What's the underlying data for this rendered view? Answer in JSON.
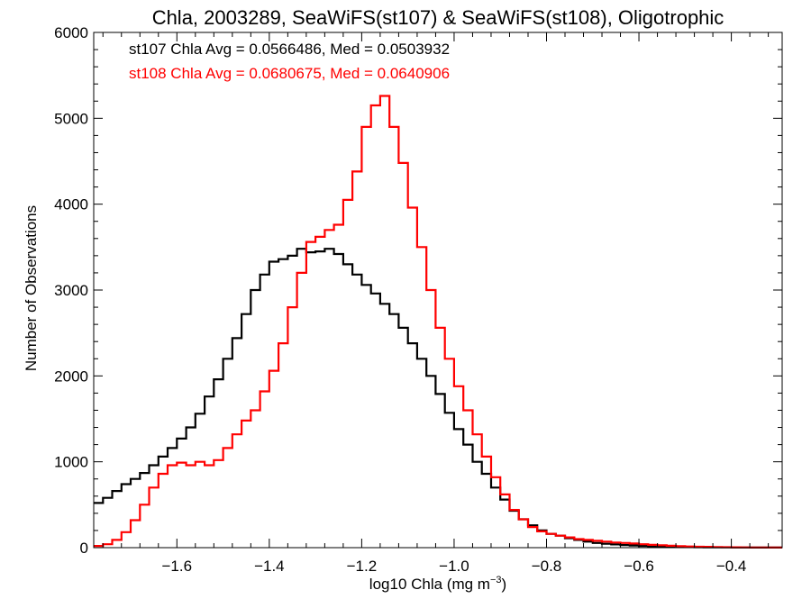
{
  "chart_data": {
    "type": "line",
    "step": true,
    "title": "Chla, 2003289, SeaWiFS(st107) & SeaWiFS(st108), Oligotrophic",
    "xlabel_prefix": "log10 Chla (mg m",
    "xlabel_exponent": "−3",
    "xlabel_suffix": ")",
    "ylabel": "Number of Observations",
    "xlim": [
      -1.78,
      -0.29
    ],
    "ylim": [
      0,
      6000
    ],
    "x_ticks": [
      -1.6,
      -1.4,
      -1.2,
      -1.0,
      -0.8,
      -0.6,
      -0.4
    ],
    "x_tick_labels": [
      "−1.6",
      "−1.4",
      "−1.2",
      "−1.0",
      "−0.8",
      "−0.6",
      "−0.4"
    ],
    "y_ticks": [
      0,
      1000,
      2000,
      3000,
      4000,
      5000,
      6000
    ],
    "y_tick_labels": [
      "0",
      "1000",
      "2000",
      "3000",
      "4000",
      "5000",
      "6000"
    ],
    "annotations": [
      {
        "text": "st107 Chla Avg = 0.0566486, Med = 0.0503932",
        "color": "#000000"
      },
      {
        "text": "st108 Chla Avg = 0.0680675, Med = 0.0640906",
        "color": "#ff0000"
      }
    ],
    "series": [
      {
        "color": "#000000",
        "x": [
          -1.78,
          -1.76,
          -1.74,
          -1.72,
          -1.7,
          -1.68,
          -1.66,
          -1.64,
          -1.62,
          -1.6,
          -1.58,
          -1.56,
          -1.54,
          -1.52,
          -1.5,
          -1.48,
          -1.46,
          -1.44,
          -1.42,
          -1.4,
          -1.38,
          -1.36,
          -1.34,
          -1.32,
          -1.3,
          -1.28,
          -1.26,
          -1.24,
          -1.22,
          -1.2,
          -1.18,
          -1.16,
          -1.14,
          -1.12,
          -1.1,
          -1.08,
          -1.06,
          -1.04,
          -1.02,
          -1.0,
          -0.98,
          -0.96,
          -0.94,
          -0.92,
          -0.9,
          -0.88,
          -0.86,
          -0.84,
          -0.82,
          -0.8,
          -0.78,
          -0.76,
          -0.74,
          -0.72,
          -0.7,
          -0.68,
          -0.66,
          -0.64,
          -0.62,
          -0.6,
          -0.58,
          -0.56,
          -0.54,
          -0.52,
          -0.5,
          -0.48,
          -0.46,
          -0.44,
          -0.42,
          -0.4,
          -0.38,
          -0.36,
          -0.34,
          -0.32,
          -0.3
        ],
        "y": [
          520,
          580,
          660,
          740,
          800,
          870,
          960,
          1060,
          1160,
          1270,
          1400,
          1560,
          1760,
          1960,
          2200,
          2440,
          2720,
          3000,
          3180,
          3330,
          3360,
          3400,
          3480,
          3440,
          3450,
          3480,
          3420,
          3300,
          3180,
          3060,
          2960,
          2840,
          2720,
          2560,
          2380,
          2200,
          2000,
          1790,
          1570,
          1380,
          1200,
          1000,
          860,
          700,
          560,
          430,
          330,
          260,
          200,
          160,
          140,
          110,
          90,
          70,
          55,
          45,
          38,
          30,
          25,
          20,
          16,
          12,
          10,
          8,
          6,
          5,
          4,
          3,
          3,
          2,
          2,
          1,
          1,
          1,
          1
        ]
      },
      {
        "color": "#ff0000",
        "x": [
          -1.78,
          -1.76,
          -1.74,
          -1.72,
          -1.7,
          -1.68,
          -1.66,
          -1.64,
          -1.62,
          -1.6,
          -1.58,
          -1.56,
          -1.54,
          -1.52,
          -1.5,
          -1.48,
          -1.46,
          -1.44,
          -1.42,
          -1.4,
          -1.38,
          -1.36,
          -1.34,
          -1.32,
          -1.3,
          -1.28,
          -1.26,
          -1.24,
          -1.22,
          -1.2,
          -1.18,
          -1.16,
          -1.14,
          -1.12,
          -1.1,
          -1.08,
          -1.06,
          -1.04,
          -1.02,
          -1.0,
          -0.98,
          -0.96,
          -0.94,
          -0.92,
          -0.9,
          -0.88,
          -0.86,
          -0.84,
          -0.82,
          -0.8,
          -0.78,
          -0.76,
          -0.74,
          -0.72,
          -0.7,
          -0.68,
          -0.66,
          -0.64,
          -0.62,
          -0.6,
          -0.58,
          -0.56,
          -0.54,
          -0.52,
          -0.5,
          -0.48,
          -0.46,
          -0.44,
          -0.42,
          -0.4,
          -0.38,
          -0.36,
          -0.34,
          -0.32,
          -0.3
        ],
        "y": [
          20,
          40,
          90,
          180,
          320,
          500,
          700,
          860,
          960,
          990,
          960,
          1000,
          960,
          1020,
          1160,
          1320,
          1480,
          1600,
          1820,
          2060,
          2380,
          2800,
          3200,
          3560,
          3620,
          3700,
          3760,
          4050,
          4380,
          4900,
          5150,
          5260,
          4900,
          4480,
          3960,
          3500,
          3000,
          2560,
          2200,
          1880,
          1600,
          1320,
          1060,
          820,
          620,
          440,
          330,
          240,
          190,
          160,
          140,
          120,
          100,
          90,
          80,
          70,
          60,
          55,
          48,
          40,
          32,
          28,
          22,
          18,
          14,
          11,
          9,
          7,
          5,
          4,
          3,
          2,
          2,
          1,
          1
        ]
      }
    ]
  }
}
